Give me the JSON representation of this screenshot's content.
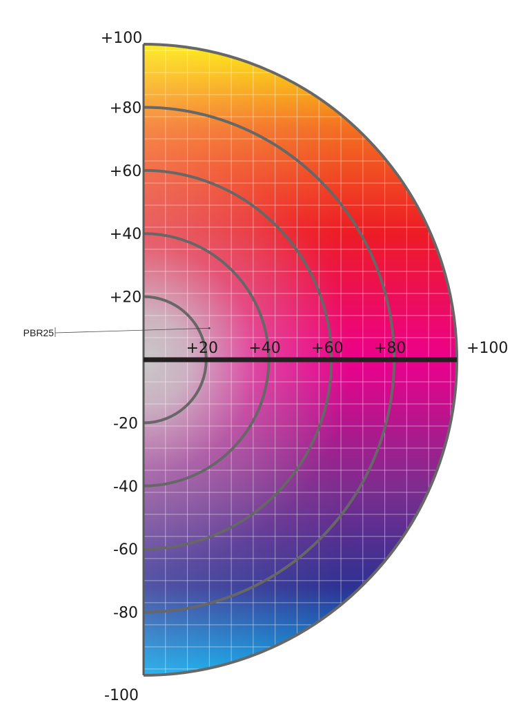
{
  "chart_data": {
    "type": "scatter",
    "plot": "half-circle color space (hue / chroma chart)",
    "x_ticks": [
      "+20",
      "+40",
      "+60",
      "+80",
      "+100"
    ],
    "y_ticks": [
      "+100",
      "+80",
      "+60",
      "+40",
      "+20",
      "-20",
      "-40",
      "-60",
      "-80",
      "-100"
    ],
    "x_range": [
      0,
      100
    ],
    "y_range": [
      -100,
      100
    ],
    "rings": [
      20,
      40,
      60,
      80
    ],
    "grid": true,
    "points": [
      {
        "label": "PBR25",
        "x": 21,
        "y": 10
      }
    ],
    "colors": {
      "yellow": "#fff200",
      "orange": "#f36f21",
      "red": "#ed1c24",
      "magenta": "#ec008c",
      "purple": "#7b2d8e",
      "blue": "#2e3192",
      "cyan": "#00aeef",
      "neutral": "#c8c8c8",
      "ring": "#676767",
      "axis": "#231f20"
    }
  }
}
